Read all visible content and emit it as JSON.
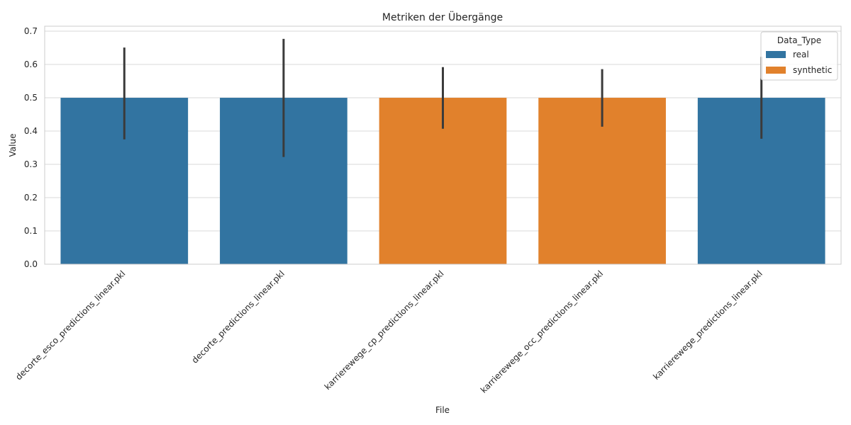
{
  "chart_data": {
    "type": "bar",
    "title": "Metriken der Übergänge",
    "xlabel": "File",
    "ylabel": "Value",
    "ylim": [
      0,
      0.715
    ],
    "yticks": [
      "0.0",
      "0.1",
      "0.2",
      "0.3",
      "0.4",
      "0.5",
      "0.6",
      "0.7"
    ],
    "grid": true,
    "legend": {
      "title": "Data_Type",
      "position": "top-right",
      "entries": [
        {
          "name": "real",
          "color": "#3274a1"
        },
        {
          "name": "synthetic",
          "color": "#e1812c"
        }
      ]
    },
    "categories": [
      "decorte_esco_predictions_linear.pkl",
      "decorte_predictions_linear.pkl",
      "karrierewege_cp_predictions_linear.pkl",
      "karrierewege_occ_predictions_linear.pkl",
      "karrierewege_predictions_linear.pkl"
    ],
    "bars": [
      {
        "category": "decorte_esco_predictions_linear.pkl",
        "data_type": "real",
        "value": 0.5,
        "ci": [
          0.375,
          0.651
        ]
      },
      {
        "category": "decorte_predictions_linear.pkl",
        "data_type": "real",
        "value": 0.5,
        "ci": [
          0.322,
          0.677
        ]
      },
      {
        "category": "karrierewege_cp_predictions_linear.pkl",
        "data_type": "synthetic",
        "value": 0.5,
        "ci": [
          0.407,
          0.592
        ]
      },
      {
        "category": "karrierewege_occ_predictions_linear.pkl",
        "data_type": "synthetic",
        "value": 0.5,
        "ci": [
          0.413,
          0.586
        ]
      },
      {
        "category": "karrierewege_predictions_linear.pkl",
        "data_type": "real",
        "value": 0.5,
        "ci": [
          0.377,
          0.623
        ]
      }
    ],
    "errorbar_color": "#3b3b3b",
    "grid_color": "#d9d9d9",
    "frame_color": "#cccccc"
  }
}
